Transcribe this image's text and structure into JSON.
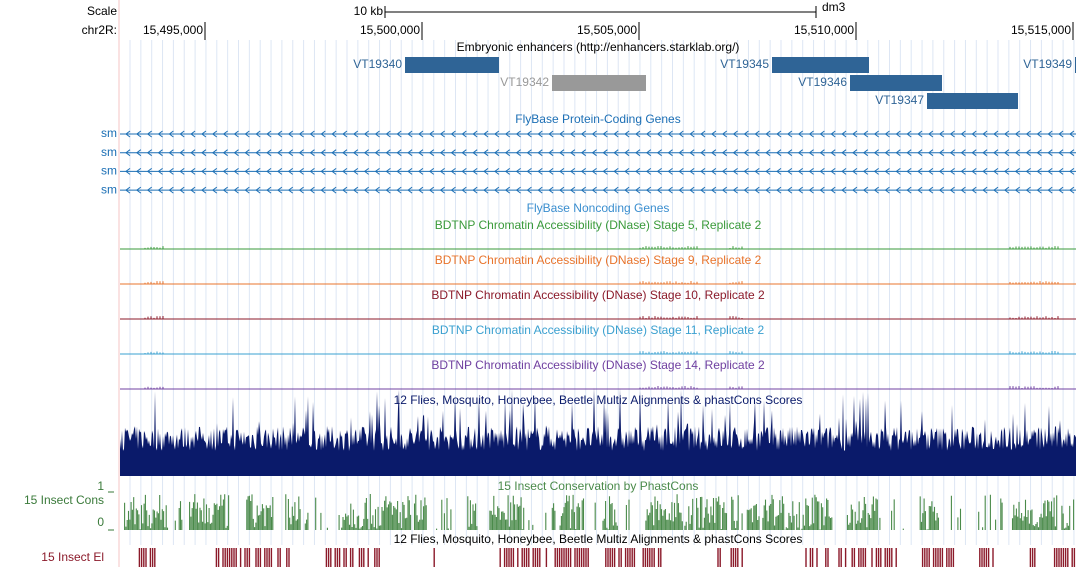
{
  "scale": {
    "label": "Scale",
    "bar_label": "10 kb",
    "assembly": "dm3"
  },
  "position": {
    "label": "chr2R:",
    "ticks": [
      {
        "value": 15495000,
        "label": "15,495,000"
      },
      {
        "value": 15500000,
        "label": "15,500,000"
      },
      {
        "value": 15505000,
        "label": "15,505,000"
      },
      {
        "value": 15510000,
        "label": "15,510,000"
      },
      {
        "value": 15515000,
        "label": "15,515,000"
      }
    ]
  },
  "enhancers": {
    "title": "Embryonic enhancers (http://enhancers.starklab.org/)",
    "items": [
      "VT19340",
      "VT19342",
      "VT19345",
      "VT19346",
      "VT19347",
      "VT19349"
    ]
  },
  "protein_genes": {
    "title": "FlyBase Protein-Coding Genes",
    "rows": [
      "sm",
      "sm",
      "sm",
      "sm"
    ]
  },
  "noncoding_genes": {
    "title": "FlyBase Noncoding Genes"
  },
  "dnase_tracks": [
    "BDTNP Chromatin Accessibility (DNase) Stage 5, Replicate 2",
    "BDTNP Chromatin Accessibility (DNase) Stage 9, Replicate 2",
    "BDTNP Chromatin Accessibility (DNase) Stage 10, Replicate 2",
    "BDTNP Chromatin Accessibility (DNase) Stage 11, Replicate 2",
    "BDTNP Chromatin Accessibility (DNase) Stage 14, Replicate 2"
  ],
  "multiz": {
    "title": "12 Flies, Mosquito, Honeybee, Beetle Multiz Alignments & phastCons Scores"
  },
  "phastcons": {
    "title": "15 Insect Conservation by PhastCons",
    "label": "15 Insect Cons",
    "axis_top": "1",
    "axis_bottom": "0"
  },
  "elements": {
    "title": "12 Flies, Mosquito, Honeybee, Beetle Multiz Alignments & phastCons Scores",
    "label": "15 Insect El"
  }
}
